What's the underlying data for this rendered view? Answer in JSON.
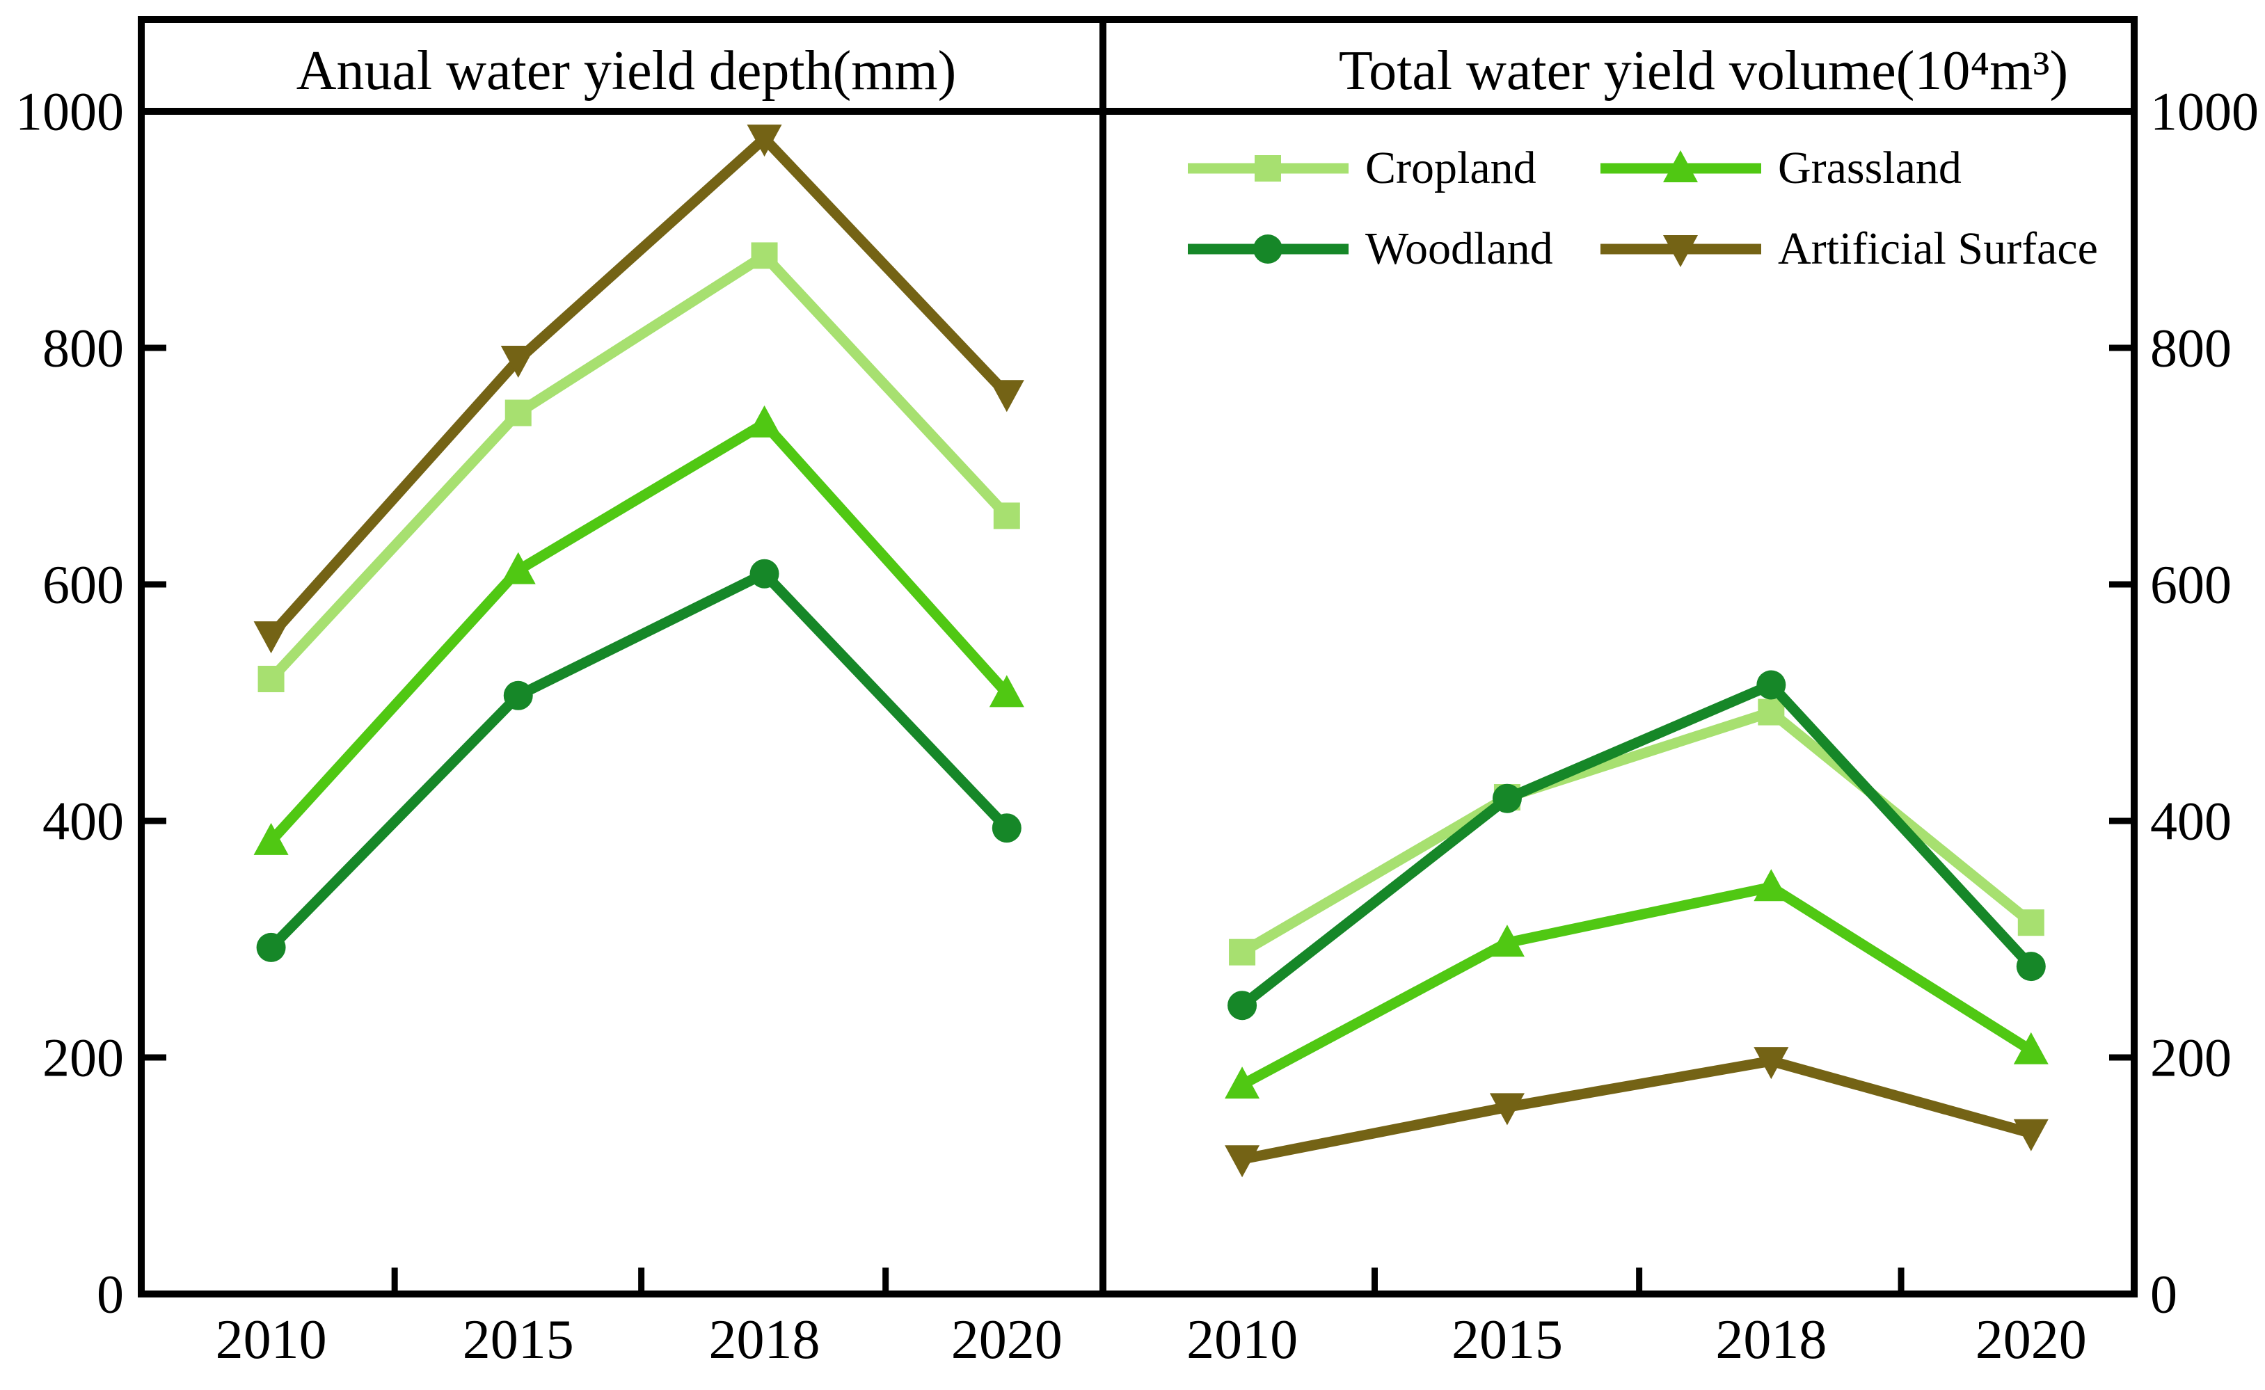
{
  "figure": {
    "background": "#ffffff",
    "frame_color": "#000000",
    "text_color": "#000000"
  },
  "axes": {
    "y_tick_labels": [
      "0",
      "200",
      "400",
      "600",
      "800",
      "1000"
    ],
    "y_tick_values": [
      0,
      200,
      400,
      600,
      800,
      1000
    ],
    "x_labels": [
      "2010",
      "2015",
      "2018",
      "2020"
    ]
  },
  "legend": {
    "entries": [
      {
        "label": "Cropland",
        "marker": "square",
        "color": "#a7e070"
      },
      {
        "label": "Grassland",
        "marker": "triangle-up",
        "color": "#50c813"
      },
      {
        "label": "Woodland",
        "marker": "circle",
        "color": "#168728"
      },
      {
        "label": "Artificial Surface",
        "marker": "triangle-down",
        "color": "#746315"
      }
    ]
  },
  "chart_data": [
    {
      "type": "line",
      "panel": "left",
      "title": "Anual water yield depth(mm)",
      "categories": [
        "2010",
        "2015",
        "2018",
        "2020"
      ],
      "ylim": [
        0,
        1000
      ],
      "yticks": [
        0,
        200,
        400,
        600,
        800,
        1000
      ],
      "grid": false,
      "legend_position": "top-of-right-panel",
      "series": [
        {
          "name": "Cropland",
          "marker": "square",
          "color": "#a7e070",
          "values": [
            520,
            745,
            878,
            658
          ]
        },
        {
          "name": "Grassland",
          "marker": "triangle-up",
          "color": "#50c813",
          "values": [
            383,
            612,
            736,
            508
          ]
        },
        {
          "name": "Woodland",
          "marker": "circle",
          "color": "#168728",
          "values": [
            293,
            506,
            609,
            394
          ]
        },
        {
          "name": "Artificial Surface",
          "marker": "triangle-down",
          "color": "#746315",
          "values": [
            557,
            790,
            977,
            761
          ]
        }
      ]
    },
    {
      "type": "line",
      "panel": "right",
      "title": "Total water yield volume(10⁴m³)",
      "categories": [
        "2010",
        "2015",
        "2018",
        "2020"
      ],
      "ylim": [
        0,
        1000
      ],
      "yticks": [
        0,
        200,
        400,
        600,
        800,
        1000
      ],
      "grid": false,
      "series": [
        {
          "name": "Cropland",
          "marker": "square",
          "color": "#a7e070",
          "values": [
            289,
            420,
            492,
            314
          ]
        },
        {
          "name": "Grassland",
          "marker": "triangle-up",
          "color": "#50c813",
          "values": [
            177,
            297,
            344,
            206
          ]
        },
        {
          "name": "Woodland",
          "marker": "circle",
          "color": "#168728",
          "values": [
            244,
            419,
            515,
            277
          ]
        },
        {
          "name": "Artificial Surface",
          "marker": "triangle-down",
          "color": "#746315",
          "values": [
            114,
            158,
            197,
            136
          ]
        }
      ]
    }
  ]
}
